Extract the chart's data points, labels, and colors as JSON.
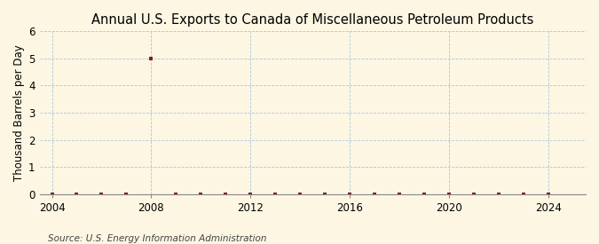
{
  "title": "Annual U.S. Exports to Canada of Miscellaneous Petroleum Products",
  "ylabel": "Thousand Barrels per Day",
  "source": "Source: U.S. Energy Information Administration",
  "xlim": [
    2003.5,
    2025.5
  ],
  "ylim": [
    0,
    6
  ],
  "yticks": [
    0,
    1,
    2,
    3,
    4,
    5,
    6
  ],
  "xticks": [
    2004,
    2008,
    2012,
    2016,
    2020,
    2024
  ],
  "background_color": "#fdf6e3",
  "grid_color": "#aac8d8",
  "marker_color": "#8b1a1a",
  "data_x": [
    2004,
    2005,
    2006,
    2007,
    2008,
    2009,
    2010,
    2011,
    2012,
    2013,
    2014,
    2015,
    2016,
    2017,
    2018,
    2019,
    2020,
    2021,
    2022,
    2023,
    2024
  ],
  "data_y": [
    0,
    0,
    0,
    0,
    5,
    0,
    0,
    0,
    0,
    0,
    0,
    0,
    0,
    0,
    0,
    0,
    0,
    0,
    0,
    0,
    0
  ],
  "title_fontsize": 10.5,
  "ylabel_fontsize": 8.5,
  "source_fontsize": 7.5,
  "tick_fontsize": 8.5
}
